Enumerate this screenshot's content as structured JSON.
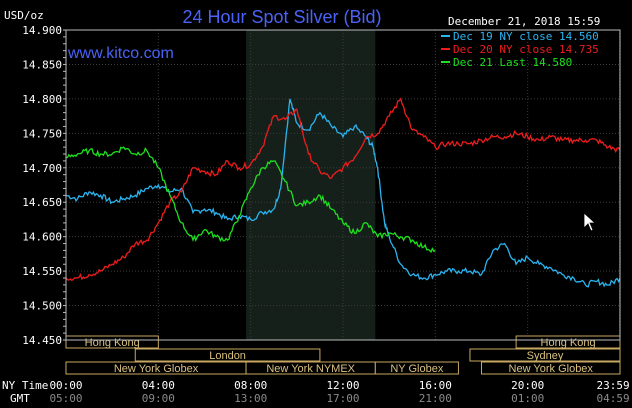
{
  "chart_data": {
    "type": "line",
    "title": "24 Hour Spot Silver (Bid)",
    "unit_label": "USD/oz",
    "watermark": "www.kitco.com",
    "timestamp": "December 21, 2018 15:59",
    "ylim": [
      14.45,
      14.9
    ],
    "y_ticks": [
      "14.900",
      "14.850",
      "14.800",
      "14.750",
      "14.700",
      "14.650",
      "14.600",
      "14.550",
      "14.500",
      "14.450"
    ],
    "x_row_labels": {
      "ny": "NY Time",
      "gmt": "GMT"
    },
    "x_ticks_ny": [
      "00:00",
      "04:00",
      "08:00",
      "12:00",
      "16:00",
      "20:00",
      "23:59"
    ],
    "x_ticks_gmt": [
      "05:00",
      "09:00",
      "13:00",
      "17:00",
      "21:00",
      "01:00",
      "04:59"
    ],
    "x_tick_hours": [
      0,
      4,
      8,
      12,
      16,
      20,
      23.983
    ],
    "shaded_session_hours": [
      7.8,
      13.4
    ],
    "markets": [
      {
        "label": "Hong Kong",
        "row": 0,
        "start": 0,
        "end": 4
      },
      {
        "label": "London",
        "row": 1,
        "start": 3,
        "end": 11
      },
      {
        "label": "New York Globex",
        "row": 2,
        "start": 0,
        "end": 7.8
      },
      {
        "label": "New York NYMEX",
        "row": 2,
        "start": 7.8,
        "end": 13.4
      },
      {
        "label": "NY Globex",
        "row": 2,
        "start": 13.4,
        "end": 17
      },
      {
        "label": "Hong Kong",
        "row": 0,
        "start": 19.5,
        "end": 24
      },
      {
        "label": "Sydney",
        "row": 1,
        "start": 17.5,
        "end": 24
      },
      {
        "label": "New York Globex",
        "row": 2,
        "start": 18,
        "end": 24
      }
    ],
    "series": [
      {
        "name": "Dec 19 NY close 14.560",
        "color": "#2ab4f0",
        "x": [
          0,
          0.5,
          1,
          1.5,
          2,
          2.5,
          3,
          3.5,
          4,
          4.5,
          5,
          5.5,
          6,
          6.5,
          7,
          7.5,
          8,
          8.5,
          9,
          9.3,
          9.7,
          10,
          10.5,
          11,
          11.5,
          12,
          12.5,
          13,
          13.3,
          13.5,
          13.8,
          14,
          14.5,
          15,
          15.5,
          16,
          16.5,
          17,
          17.5,
          18,
          18.5,
          19,
          19.5,
          20,
          20.5,
          21,
          21.5,
          22,
          22.5,
          23,
          23.5,
          24
        ],
        "y": [
          14.66,
          14.655,
          14.665,
          14.66,
          14.65,
          14.655,
          14.66,
          14.67,
          14.675,
          14.665,
          14.67,
          14.635,
          14.64,
          14.635,
          14.625,
          14.63,
          14.625,
          14.635,
          14.64,
          14.67,
          14.8,
          14.765,
          14.755,
          14.78,
          14.76,
          14.745,
          14.76,
          14.745,
          14.73,
          14.7,
          14.62,
          14.6,
          14.56,
          14.545,
          14.54,
          14.545,
          14.55,
          14.55,
          14.55,
          14.545,
          14.58,
          14.59,
          14.56,
          14.57,
          14.56,
          14.555,
          14.545,
          14.54,
          14.53,
          14.535,
          14.53,
          14.54
        ]
      },
      {
        "name": "Dec 20 NY close 14.735",
        "color": "#ee1c1c",
        "x": [
          0,
          0.5,
          1,
          1.5,
          2,
          2.5,
          3,
          3.5,
          4,
          4.5,
          5,
          5.5,
          6,
          6.5,
          7,
          7.5,
          8,
          8.5,
          9,
          9.5,
          10,
          10.5,
          11,
          11.5,
          12,
          12.5,
          13,
          13.5,
          14,
          14.5,
          15,
          15.5,
          16,
          16.5,
          17,
          17.5,
          18,
          18.5,
          19,
          19.5,
          20,
          20.5,
          21,
          21.5,
          22,
          22.5,
          23,
          23.5,
          24
        ],
        "y": [
          14.54,
          14.54,
          14.545,
          14.55,
          14.56,
          14.57,
          14.59,
          14.595,
          14.62,
          14.65,
          14.665,
          14.7,
          14.695,
          14.69,
          14.71,
          14.7,
          14.705,
          14.73,
          14.775,
          14.77,
          14.785,
          14.72,
          14.695,
          14.685,
          14.7,
          14.715,
          14.745,
          14.75,
          14.775,
          14.8,
          14.755,
          14.745,
          14.73,
          14.735,
          14.735,
          14.735,
          14.74,
          14.745,
          14.745,
          14.75,
          14.745,
          14.74,
          14.745,
          14.74,
          14.74,
          14.74,
          14.74,
          14.73,
          14.725
        ]
      },
      {
        "name": "Dec 21 Last 14.580",
        "color": "#1ee01e",
        "x": [
          0,
          0.5,
          1,
          1.5,
          2,
          2.5,
          3,
          3.5,
          4,
          4.5,
          5,
          5.5,
          6,
          6.5,
          7,
          7.5,
          8,
          8.5,
          9,
          9.5,
          10,
          10.5,
          11,
          11.5,
          12,
          12.5,
          13,
          13.5,
          14,
          14.5,
          15,
          15.5,
          16
        ],
        "y": [
          14.715,
          14.72,
          14.725,
          14.72,
          14.72,
          14.73,
          14.72,
          14.725,
          14.7,
          14.66,
          14.62,
          14.595,
          14.61,
          14.6,
          14.595,
          14.63,
          14.67,
          14.7,
          14.71,
          14.68,
          14.645,
          14.65,
          14.66,
          14.64,
          14.62,
          14.605,
          14.62,
          14.6,
          14.605,
          14.6,
          14.595,
          14.585,
          14.58
        ]
      }
    ]
  }
}
